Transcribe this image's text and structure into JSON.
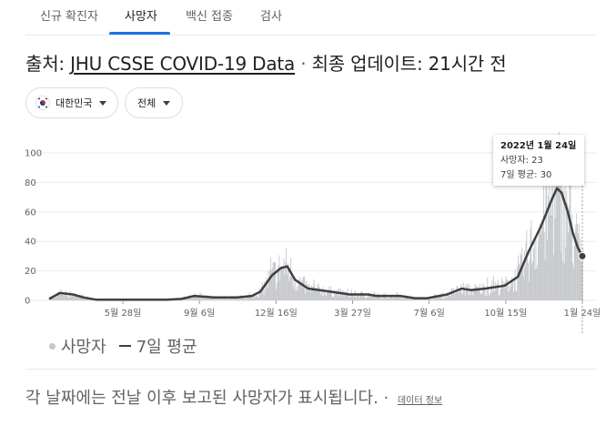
{
  "tabs": [
    {
      "label": "신규 확진자"
    },
    {
      "label": "사망자"
    },
    {
      "label": "백신 접종"
    },
    {
      "label": "검사"
    }
  ],
  "source": {
    "prefix": "출처: ",
    "link": "JHU CSSE COVID-19 Data",
    "separator": " · ",
    "updated": "최종 업데이트: 21시간 전"
  },
  "filters": {
    "region": "대한민국",
    "range": "전체"
  },
  "tooltip": {
    "date": "2022년 1월 24일",
    "deaths_line": "사망자: 23",
    "avg_line": "7일 평균: 30"
  },
  "legend": {
    "daily": "사망자",
    "average": "7일 평균"
  },
  "footnote": {
    "text": "각 날짜에는 전날 이후 보고된 사망자가 표시됩니다.",
    "separator": " · ",
    "info_link": "데이터 정보"
  },
  "colors": {
    "bars": "#c6c8cb",
    "line": "#3c4043",
    "accent": "#1a73e8"
  },
  "chart_data": {
    "type": "bar",
    "title": "",
    "xlabel": "",
    "ylabel": "",
    "ylim": [
      0,
      100
    ],
    "yticks": [
      0,
      20,
      40,
      60,
      80,
      100
    ],
    "x_tick_labels": [
      "5월 28일",
      "9월 6일",
      "12월 16일",
      "3월 27일",
      "7월 6일",
      "10월 15일",
      "1월 24일"
    ],
    "grid": true,
    "series": [
      {
        "name": "7일 평균",
        "kind": "line",
        "points": [
          {
            "x": "2020-03-01",
            "y": 1
          },
          {
            "x": "2020-03-15",
            "y": 5
          },
          {
            "x": "2020-04-01",
            "y": 4
          },
          {
            "x": "2020-04-15",
            "y": 2
          },
          {
            "x": "2020-05-01",
            "y": 0.5
          },
          {
            "x": "2020-05-28",
            "y": 0.5
          },
          {
            "x": "2020-07-01",
            "y": 0.5
          },
          {
            "x": "2020-08-01",
            "y": 0.5
          },
          {
            "x": "2020-08-20",
            "y": 1
          },
          {
            "x": "2020-09-06",
            "y": 3
          },
          {
            "x": "2020-10-01",
            "y": 2
          },
          {
            "x": "2020-11-01",
            "y": 2
          },
          {
            "x": "2020-11-20",
            "y": 3
          },
          {
            "x": "2020-12-01",
            "y": 6
          },
          {
            "x": "2020-12-16",
            "y": 17
          },
          {
            "x": "2020-12-28",
            "y": 22
          },
          {
            "x": "2021-01-05",
            "y": 23
          },
          {
            "x": "2021-01-15",
            "y": 14
          },
          {
            "x": "2021-02-01",
            "y": 8
          },
          {
            "x": "2021-03-01",
            "y": 6
          },
          {
            "x": "2021-03-27",
            "y": 4
          },
          {
            "x": "2021-04-20",
            "y": 4
          },
          {
            "x": "2021-05-01",
            "y": 3
          },
          {
            "x": "2021-06-01",
            "y": 3
          },
          {
            "x": "2021-06-20",
            "y": 1.5
          },
          {
            "x": "2021-07-06",
            "y": 1.5
          },
          {
            "x": "2021-08-01",
            "y": 4
          },
          {
            "x": "2021-08-20",
            "y": 8
          },
          {
            "x": "2021-09-01",
            "y": 7
          },
          {
            "x": "2021-09-20",
            "y": 8
          },
          {
            "x": "2021-10-15",
            "y": 10
          },
          {
            "x": "2021-11-01",
            "y": 16
          },
          {
            "x": "2021-11-15",
            "y": 33
          },
          {
            "x": "2021-12-01",
            "y": 50
          },
          {
            "x": "2021-12-15",
            "y": 68
          },
          {
            "x": "2021-12-22",
            "y": 76
          },
          {
            "x": "2021-12-28",
            "y": 73
          },
          {
            "x": "2022-01-05",
            "y": 60
          },
          {
            "x": "2022-01-12",
            "y": 45
          },
          {
            "x": "2022-01-18",
            "y": 36
          },
          {
            "x": "2022-01-24",
            "y": 30
          }
        ]
      },
      {
        "name": "사망자",
        "kind": "bars",
        "daily_peak": 94,
        "note": "daily bars follow the 7-day average with day-to-day variation"
      }
    ],
    "highlight": {
      "x": "2022-01-24",
      "deaths": 23,
      "avg": 30
    }
  }
}
